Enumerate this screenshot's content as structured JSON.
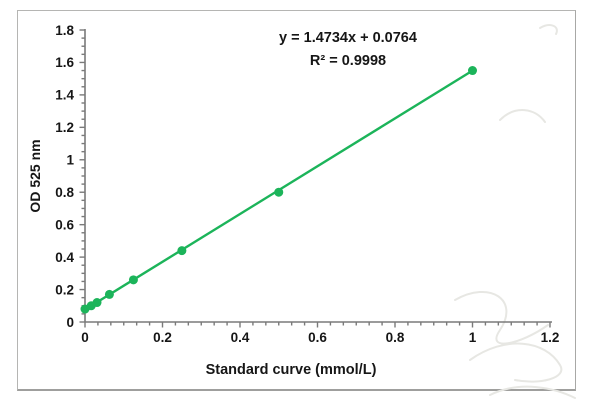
{
  "chart_data": {
    "type": "scatter",
    "title": "",
    "xlabel": "Standard curve (mmol/L)",
    "ylabel": "OD 525 nm",
    "x": [
      0,
      0.016,
      0.031,
      0.063,
      0.125,
      0.25,
      0.5,
      1.0
    ],
    "y": [
      0.08,
      0.1,
      0.12,
      0.17,
      0.26,
      0.44,
      0.8,
      1.55
    ],
    "trendline": {
      "slope": 1.4734,
      "intercept": 0.0764,
      "x_start": 0,
      "x_end": 1.0
    },
    "equation": "y = 1.4734x + 0.0764",
    "r_squared": "R² = 0.9998",
    "xlim": [
      0,
      1.2
    ],
    "ylim": [
      0,
      1.8
    ],
    "x_major_step": 0.2,
    "y_major_step": 0.2,
    "x_minor_divisions": 6,
    "y_minor_divisions": 4,
    "grid": false,
    "legend": "none",
    "line_color": "#1cb45a",
    "axis_color": "#7a7a7a",
    "text_color": "#161616"
  }
}
